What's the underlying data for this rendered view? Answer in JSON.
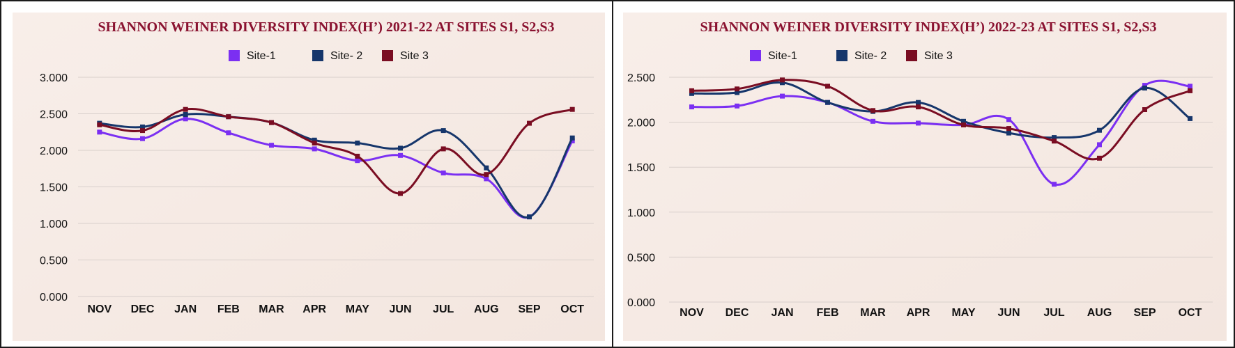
{
  "chart_data": [
    {
      "type": "line",
      "title": "SHANNON WEINER DIVERSITY INDEX(H’) 2021-22 AT SITES S1, S2,S3",
      "categories": [
        "NOV",
        "DEC",
        "JAN",
        "FEB",
        "MAR",
        "APR",
        "MAY",
        "JUN",
        "JUL",
        "AUG",
        "SEP",
        "OCT"
      ],
      "y_ticks": [
        "0.000",
        "0.500",
        "1.000",
        "1.500",
        "2.000",
        "2.500",
        "3.000"
      ],
      "ylim": [
        0,
        3
      ],
      "grid": "horizontal",
      "legend_position": "top",
      "series": [
        {
          "name": "Site-1",
          "color": "#7b2ff2",
          "values": [
            2.25,
            2.16,
            2.43,
            2.24,
            2.07,
            2.02,
            1.86,
            1.93,
            1.69,
            1.61,
            1.09,
            2.13
          ]
        },
        {
          "name": "Site- 2",
          "color": "#16366b",
          "values": [
            2.37,
            2.32,
            2.49,
            2.46,
            2.38,
            2.14,
            2.1,
            2.03,
            2.27,
            1.76,
            1.09,
            2.17
          ]
        },
        {
          "name": "Site 3",
          "color": "#7a0d22",
          "values": [
            2.35,
            2.27,
            2.56,
            2.46,
            2.38,
            2.1,
            1.92,
            1.41,
            2.02,
            1.67,
            2.37,
            2.56
          ]
        }
      ]
    },
    {
      "type": "line",
      "title": "SHANNON WEINER DIVERSITY INDEX(H’) 2022-23 AT SITES S1, S2,S3",
      "categories": [
        "NOV",
        "DEC",
        "JAN",
        "FEB",
        "MAR",
        "APR",
        "MAY",
        "JUN",
        "JUL",
        "AUG",
        "SEP",
        "OCT"
      ],
      "y_ticks": [
        "0.000",
        "0.500",
        "1.000",
        "1.500",
        "2.000",
        "2.500"
      ],
      "ylim": [
        0,
        2.5
      ],
      "grid": "horizontal",
      "legend_position": "top",
      "series": [
        {
          "name": "Site-1",
          "color": "#7b2ff2",
          "values": [
            2.17,
            2.18,
            2.29,
            2.22,
            2.01,
            1.99,
            1.97,
            2.03,
            1.31,
            1.75,
            2.41,
            2.4
          ]
        },
        {
          "name": "Site- 2",
          "color": "#16366b",
          "values": [
            2.32,
            2.33,
            2.44,
            2.22,
            2.12,
            2.22,
            2.01,
            1.88,
            1.83,
            1.91,
            2.38,
            2.04
          ]
        },
        {
          "name": "Site 3",
          "color": "#7a0d22",
          "values": [
            2.35,
            2.37,
            2.47,
            2.4,
            2.13,
            2.17,
            1.97,
            1.93,
            1.79,
            1.6,
            2.14,
            2.35
          ]
        }
      ]
    }
  ]
}
